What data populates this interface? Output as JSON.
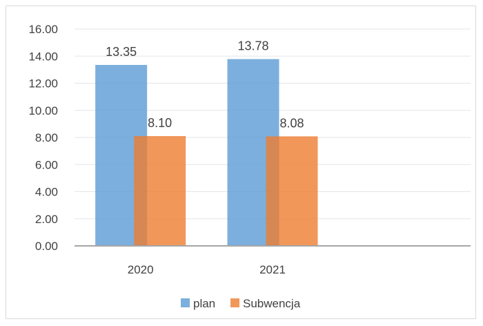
{
  "chart_data": {
    "type": "bar",
    "categories": [
      "2020",
      "2021",
      ""
    ],
    "series": [
      {
        "name": "plan",
        "values": [
          13.35,
          13.78,
          null
        ],
        "color": "#5B9BD5",
        "labels": [
          "13.35",
          "13.78",
          ""
        ]
      },
      {
        "name": "Subwencja",
        "values": [
          8.1,
          8.08,
          null
        ],
        "color": "#ED7D31",
        "labels": [
          "8.10",
          "8.08",
          ""
        ]
      }
    ],
    "ylim": [
      0,
      16
    ],
    "yticks": [
      "0.00",
      "2.00",
      "4.00",
      "6.00",
      "8.00",
      "10.00",
      "12.00",
      "14.00",
      "16.00"
    ],
    "grid": true,
    "legend": "bottom",
    "overlap": true
  }
}
